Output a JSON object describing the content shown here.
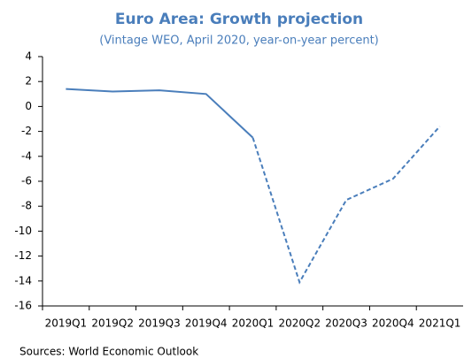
{
  "chart_data": {
    "type": "line",
    "title": "Euro Area: Growth projection",
    "subtitle": "(Vintage WEO, April 2020, year-on-year percent)",
    "source": "Sources: World Economic Outlook",
    "categories": [
      "2019Q1",
      "2019Q2",
      "2019Q3",
      "2019Q4",
      "2020Q1",
      "2020Q2",
      "2020Q3",
      "2020Q4",
      "2021Q1"
    ],
    "values": [
      1.4,
      1.2,
      1.3,
      1.0,
      -2.5,
      -14.1,
      -7.5,
      -5.8,
      -1.6
    ],
    "color": "#4a7ebb",
    "dashed_from": "2020Q1",
    "ylim": [
      -16,
      4
    ],
    "yticks": [
      -16,
      -14,
      -12,
      -10,
      -8,
      -6,
      -4,
      -2,
      0,
      2,
      4
    ],
    "grid": false
  }
}
